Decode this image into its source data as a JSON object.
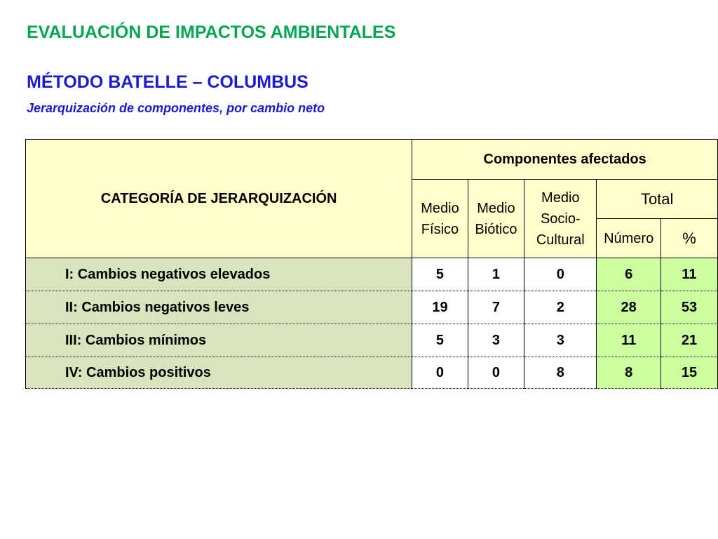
{
  "header": {
    "title": "EVALUACIÓN DE IMPACTOS AMBIENTALES",
    "subtitle": "MÉTODO BATELLE – COLUMBUS",
    "caption": "Jerarquización de componentes, por cambio neto"
  },
  "table": {
    "category_header": "CATEGORÍA DE JERARQUIZACIÓN",
    "group_header": "Componentes afectados",
    "columns": [
      "Medio Físico",
      "Medio Biótico",
      "Medio Socio-Cultural"
    ],
    "total_header": "Total",
    "total_columns": [
      "Número",
      "%"
    ],
    "rows": [
      [
        "I: Cambios negativos elevados",
        5,
        1,
        0,
        6,
        11
      ],
      [
        "II: Cambios negativos leves",
        19,
        7,
        2,
        28,
        53
      ],
      [
        "III: Cambios mínimos",
        5,
        3,
        3,
        11,
        21
      ],
      [
        "IV: Cambios positivos",
        0,
        0,
        8,
        8,
        15
      ]
    ]
  }
}
